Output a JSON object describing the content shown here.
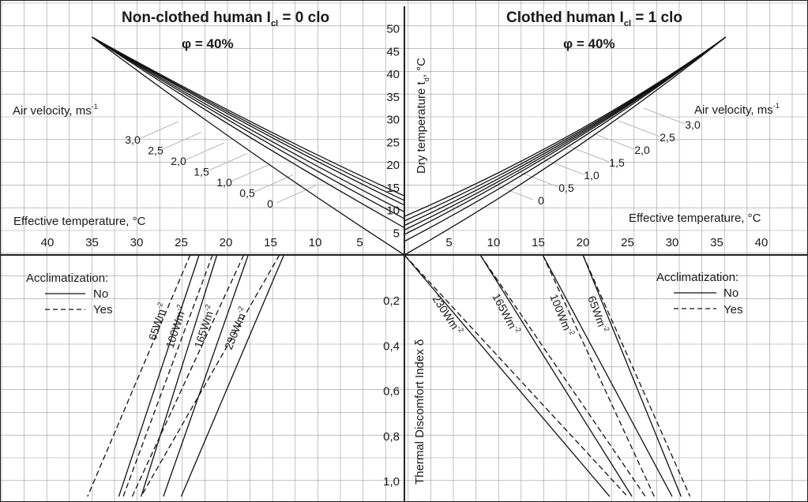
{
  "chart_data": {
    "type": "line",
    "colors": {
      "grid": "#9a9a9a",
      "axis": "#222222",
      "line": "#111111",
      "guide": "#b9b9b9"
    },
    "panels": {
      "top_left": {
        "title_pre": "Non-clothed  human I",
        "title_sub": "cl",
        "title_post": " = 0 clo",
        "subtitle": "φ = 40%",
        "velocity_label": "Air velocity, ms",
        "velocity_label_sup": "-1",
        "xlabel": "Effective temperature, °C",
        "x_ticks": [
          "40",
          "35",
          "30",
          "25",
          "20",
          "15",
          "10",
          "5"
        ],
        "velocity_ticks": [
          "3,0",
          "2,5",
          "2,0",
          "1,5",
          "1,0",
          "0,5",
          "0"
        ]
      },
      "top_right": {
        "title_pre": "Clothed  human I",
        "title_sub": "cl",
        "title_post": " = 1 clo",
        "subtitle": "φ = 40%",
        "velocity_label": "Air velocity, ms",
        "velocity_label_sup": "-1",
        "xlabel": "Effective temperature, °C",
        "x_ticks": [
          "5",
          "10",
          "15",
          "20",
          "25",
          "30",
          "35",
          "40"
        ],
        "velocity_ticks": [
          "3,0",
          "2,5",
          "2,0",
          "1,5",
          "1,0",
          "0,5",
          "0"
        ]
      },
      "center": {
        "ylabel_top": "Dry  temperature t",
        "ylabel_top_sub": "d",
        "ylabel_top_unit": ", °C",
        "y_ticks_top": [
          "50",
          "45",
          "40",
          "35",
          "30",
          "25",
          "20",
          "15",
          "10",
          "5"
        ],
        "ylabel_bottom": "Thermal Discomfort Index  δ",
        "y_ticks_bottom": [
          "0,2",
          "0,4",
          "0,6",
          "0,8",
          "1,0"
        ]
      },
      "bottom_left": {
        "legend_title": "Acclimatization:",
        "legend_no": "No",
        "legend_yes": "Yes",
        "curve_labels": [
          "65Wm",
          "100Wm",
          "165Wm",
          "230Wm"
        ],
        "curve_label_sup": "-2"
      },
      "bottom_right": {
        "legend_title": "Acclimatization:",
        "legend_no": "No",
        "legend_yes": "Yes",
        "curve_labels": [
          "230Wm",
          "165Wm",
          "100Wm",
          "65Wm"
        ],
        "curve_label_sup": "-2"
      }
    },
    "top_left_series": [
      {
        "velocity": 0,
        "effective_temp": [
          0,
          35
        ],
        "dry_temp": [
          0,
          48
        ]
      },
      {
        "velocity": 0.5,
        "effective_temp": [
          0,
          35
        ],
        "dry_temp": [
          6,
          48
        ]
      },
      {
        "velocity": 1.0,
        "effective_temp": [
          0,
          35
        ],
        "dry_temp": [
          8,
          48
        ]
      },
      {
        "velocity": 1.5,
        "effective_temp": [
          0,
          35
        ],
        "dry_temp": [
          9.5,
          48
        ]
      },
      {
        "velocity": 2.0,
        "effective_temp": [
          0,
          35
        ],
        "dry_temp": [
          11,
          48
        ]
      },
      {
        "velocity": 2.5,
        "effective_temp": [
          0,
          35
        ],
        "dry_temp": [
          12,
          48
        ]
      },
      {
        "velocity": 3.0,
        "effective_temp": [
          0,
          35
        ],
        "dry_temp": [
          13,
          48
        ]
      }
    ],
    "top_right_series": [
      {
        "velocity": 0,
        "effective_temp": [
          0,
          36
        ],
        "dry_temp": [
          0,
          48
        ]
      },
      {
        "velocity": 0.5,
        "effective_temp": [
          0,
          36
        ],
        "dry_temp": [
          3,
          48
        ]
      },
      {
        "velocity": 1.0,
        "effective_temp": [
          0,
          36
        ],
        "dry_temp": [
          4.5,
          48
        ]
      },
      {
        "velocity": 1.5,
        "effective_temp": [
          0,
          36
        ],
        "dry_temp": [
          5.5,
          48
        ]
      },
      {
        "velocity": 2.0,
        "effective_temp": [
          0,
          36
        ],
        "dry_temp": [
          6.5,
          48
        ]
      },
      {
        "velocity": 2.5,
        "effective_temp": [
          0,
          36
        ],
        "dry_temp": [
          7.5,
          48
        ]
      },
      {
        "velocity": 3.0,
        "effective_temp": [
          0,
          36
        ],
        "dry_temp": [
          8.5,
          48
        ]
      }
    ],
    "bottom_left_series": [
      {
        "metabolic_rate": 65,
        "acclimatized": false,
        "effective_temp": [
          23,
          32
        ],
        "discomfort": [
          0,
          1.07
        ]
      },
      {
        "metabolic_rate": 100,
        "acclimatized": false,
        "effective_temp": [
          21,
          29.5
        ],
        "discomfort": [
          0,
          1.07
        ]
      },
      {
        "metabolic_rate": 165,
        "acclimatized": false,
        "effective_temp": [
          17.5,
          27
        ],
        "discomfort": [
          0,
          1.07
        ]
      },
      {
        "metabolic_rate": 230,
        "acclimatized": false,
        "effective_temp": [
          13.5,
          25
        ],
        "discomfort": [
          0,
          1.07
        ]
      },
      {
        "metabolic_rate": 65,
        "acclimatized": true,
        "effective_temp": [
          24,
          35.5
        ],
        "discomfort": [
          0,
          1.07
        ]
      },
      {
        "metabolic_rate": 100,
        "acclimatized": true,
        "effective_temp": [
          21.5,
          31.5
        ],
        "discomfort": [
          0,
          1.07
        ]
      },
      {
        "metabolic_rate": 165,
        "acclimatized": true,
        "effective_temp": [
          18,
          30.5
        ],
        "discomfort": [
          0,
          1.07
        ]
      },
      {
        "metabolic_rate": 230,
        "acclimatized": true,
        "effective_temp": [
          14,
          29.5
        ],
        "discomfort": [
          0,
          1.07
        ]
      }
    ],
    "bottom_right_series": [
      {
        "metabolic_rate": 230,
        "acclimatized": false,
        "effective_temp": [
          0,
          23
        ],
        "discomfort": [
          0,
          1.07
        ]
      },
      {
        "metabolic_rate": 165,
        "acclimatized": false,
        "effective_temp": [
          8.5,
          25.5
        ],
        "discomfort": [
          0,
          1.07
        ]
      },
      {
        "metabolic_rate": 100,
        "acclimatized": false,
        "effective_temp": [
          15.5,
          30
        ],
        "discomfort": [
          0,
          1.07
        ]
      },
      {
        "metabolic_rate": 65,
        "acclimatized": false,
        "effective_temp": [
          20,
          31
        ],
        "discomfort": [
          0,
          1.07
        ]
      },
      {
        "metabolic_rate": 230,
        "acclimatized": true,
        "effective_temp": [
          0,
          25
        ],
        "discomfort": [
          0,
          1.07
        ]
      },
      {
        "metabolic_rate": 165,
        "acclimatized": true,
        "effective_temp": [
          8.5,
          27
        ],
        "discomfort": [
          0,
          1.07
        ]
      },
      {
        "metabolic_rate": 100,
        "acclimatized": true,
        "effective_temp": [
          15.5,
          28
        ],
        "discomfort": [
          0,
          1.07
        ]
      },
      {
        "metabolic_rate": 65,
        "acclimatized": true,
        "effective_temp": [
          20,
          32
        ],
        "discomfort": [
          0,
          1.07
        ]
      }
    ],
    "axes": {
      "effective_temp_range": [
        0,
        45
      ],
      "dry_temp_range": [
        0,
        55
      ],
      "discomfort_range": [
        0,
        1.1
      ],
      "grid": true
    }
  }
}
